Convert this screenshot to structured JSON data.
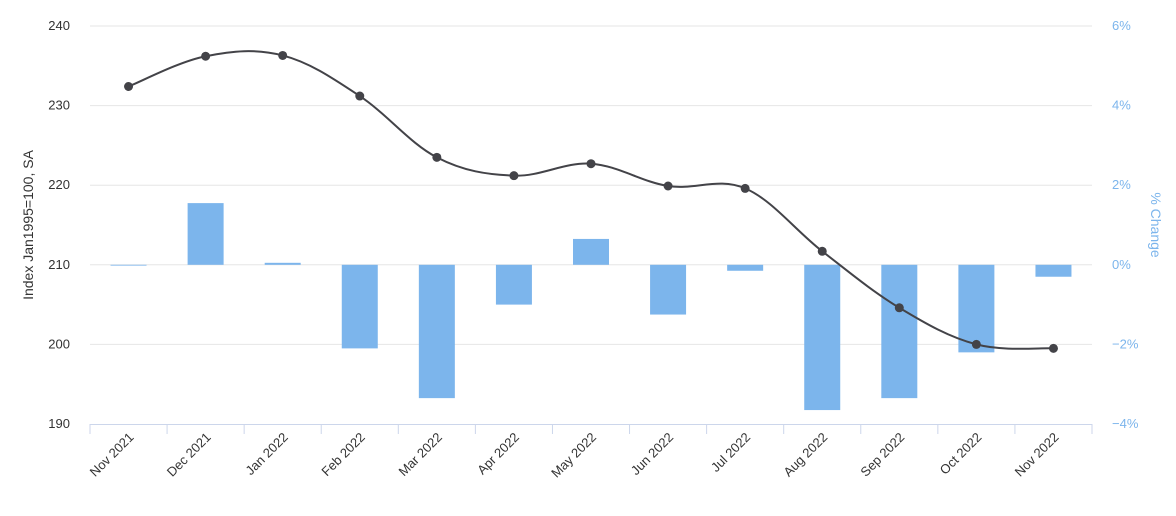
{
  "chart_data": {
    "type": "bar+line",
    "categories": [
      "Nov 2021",
      "Dec 2021",
      "Jan 2022",
      "Feb 2022",
      "Mar 2022",
      "Apr 2022",
      "May 2022",
      "Jun 2022",
      "Jul 2022",
      "Aug 2022",
      "Sep 2022",
      "Oct 2022",
      "Nov 2022"
    ],
    "series": [
      {
        "type": "bar",
        "axis": "right",
        "color": "#7cb5ec",
        "values": [
          0.0,
          1.55,
          0.05,
          -2.1,
          -3.35,
          -1.0,
          0.65,
          -1.25,
          -0.15,
          -3.65,
          -3.35,
          -2.2,
          -0.3
        ]
      },
      {
        "type": "line",
        "axis": "left",
        "color": "#434348",
        "values": [
          232.4,
          236.2,
          236.3,
          231.2,
          223.5,
          221.2,
          222.7,
          219.9,
          219.6,
          211.7,
          204.6,
          200.0,
          199.5
        ]
      }
    ],
    "left_axis": {
      "title": "Index Jan1995=100, SA",
      "min": 190,
      "max": 240,
      "ticks": [
        "190",
        "200",
        "210",
        "220",
        "230",
        "240"
      ]
    },
    "right_axis": {
      "title": "% Change",
      "min": -4,
      "max": 6,
      "ticks": [
        "−4%",
        "−2%",
        "0%",
        "2%",
        "4%",
        "6%"
      ]
    },
    "grid": true,
    "legend": "none"
  }
}
